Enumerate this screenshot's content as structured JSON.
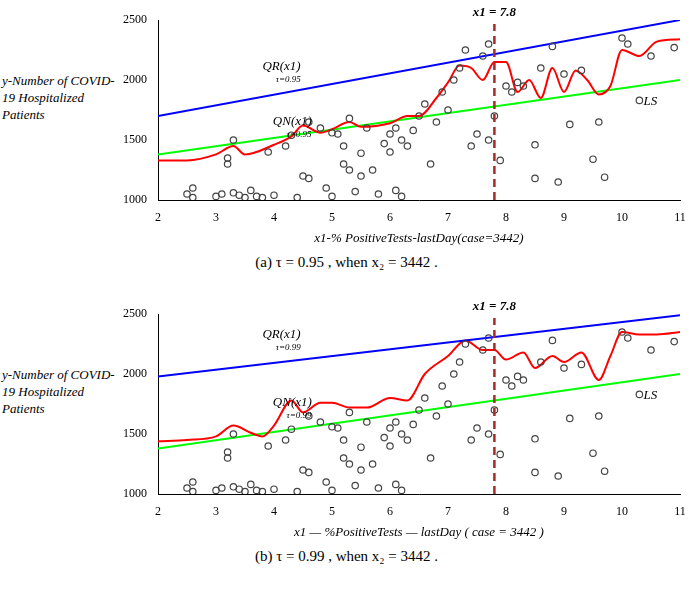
{
  "chart_data": [
    {
      "type": "scatter",
      "caption": "(a)  τ = 0.95 , when  x₂ = 3442 .",
      "ylabel": "y-Number of COVID-19 Hospitalized Patients",
      "xlabel": "x1-% PositiveTests-lastDay(case=3442)",
      "xlim": [
        2,
        11
      ],
      "xticks": [
        2,
        3,
        4,
        5,
        6,
        7,
        8,
        9,
        10,
        11
      ],
      "ylim": [
        1000,
        2500
      ],
      "yticks": [
        1000,
        1500,
        2000,
        2500
      ],
      "grid": false,
      "vline": {
        "text": "x1 = 7.8",
        "x": 7.8,
        "color": "#a52a2a",
        "line_style": "dashed"
      },
      "series": [
        {
          "type": "scatter",
          "color": "#444444",
          "marker": "circle",
          "x": [
            2.5,
            2.6,
            2.6,
            3.0,
            3.1,
            3.2,
            3.2,
            3.3,
            3.3,
            3.4,
            3.5,
            3.6,
            3.7,
            3.8,
            3.9,
            4.0,
            4.2,
            4.3,
            4.4,
            4.5,
            4.6,
            4.6,
            4.8,
            4.9,
            5.0,
            5.0,
            5.1,
            5.2,
            5.2,
            5.3,
            5.3,
            5.4,
            5.5,
            5.5,
            5.6,
            5.7,
            5.8,
            5.9,
            6.0,
            6.0,
            6.1,
            6.1,
            6.2,
            6.2,
            6.3,
            6.4,
            6.5,
            6.6,
            6.7,
            6.8,
            6.9,
            7.0,
            7.1,
            7.2,
            7.3,
            7.4,
            7.5,
            7.6,
            7.7,
            7.7,
            7.8,
            7.9,
            8.0,
            8.1,
            8.2,
            8.3,
            8.5,
            8.5,
            8.6,
            8.8,
            8.9,
            9.0,
            9.1,
            9.3,
            9.5,
            9.6,
            9.7,
            10.0,
            10.1,
            10.3,
            10.5,
            10.9
          ],
          "values": [
            1050,
            1100,
            1020,
            1030,
            1050,
            1300,
            1350,
            1500,
            1060,
            1040,
            1020,
            1080,
            1030,
            1020,
            1400,
            1040,
            1450,
            1540,
            1020,
            1200,
            1180,
            1650,
            1600,
            1100,
            1030,
            1560,
            1550,
            1300,
            1450,
            1250,
            1680,
            1070,
            1390,
            1200,
            1600,
            1250,
            1050,
            1470,
            1550,
            1400,
            1600,
            1080,
            1500,
            1030,
            1450,
            1580,
            1700,
            1800,
            1300,
            1650,
            1900,
            1750,
            2000,
            2100,
            2250,
            1450,
            1550,
            2200,
            1500,
            2300,
            1700,
            1330,
            1950,
            1900,
            1980,
            1950,
            1460,
            1180,
            2100,
            2280,
            1150,
            2050,
            1630,
            2080,
            1340,
            1650,
            1190,
            2350,
            2300,
            1830,
            2200,
            2270
          ]
        },
        {
          "type": "line",
          "name": "QR(x1)",
          "subscript": "τ=0.95",
          "color": "#0000ff",
          "line_style": "solid",
          "x": [
            2,
            11
          ],
          "values": [
            1700,
            2500
          ]
        },
        {
          "type": "line",
          "name": "QN(x1)",
          "subscript": "τ=0.95",
          "color": "#ff0000",
          "line_style": "solid",
          "x": [
            2,
            2.5,
            3,
            3.3,
            3.5,
            4,
            4.3,
            4.5,
            4.8,
            5,
            5.3,
            5.5,
            6,
            6.3,
            6.5,
            6.8,
            7,
            7.2,
            7.4,
            7.6,
            7.8,
            8,
            8.2,
            8.4,
            8.6,
            8.8,
            9,
            9.2,
            9.4,
            9.6,
            9.8,
            10,
            10.3,
            10.6,
            11
          ],
          "values": [
            1330,
            1330,
            1380,
            1450,
            1380,
            1460,
            1530,
            1620,
            1560,
            1590,
            1650,
            1610,
            1640,
            1700,
            1700,
            1850,
            1980,
            2120,
            2100,
            2000,
            2150,
            2150,
            1900,
            2000,
            1850,
            2100,
            1900,
            2080,
            2000,
            1880,
            1950,
            2250,
            2200,
            2320,
            2340
          ]
        },
        {
          "type": "line",
          "name": "LS",
          "color": "#00ff00",
          "line_style": "solid",
          "x": [
            2,
            11
          ],
          "values": [
            1380,
            2000
          ]
        }
      ]
    },
    {
      "type": "scatter",
      "caption": "(b)  τ = 0.99 , when  x₂ = 3442 .",
      "ylabel": "y-Number of COVID-19 Hospitalized Patients",
      "xlabel": "x1 — %PositiveTests — lastDay ( case = 3442 )",
      "xlim": [
        2,
        11
      ],
      "xticks": [
        2,
        3,
        4,
        5,
        6,
        7,
        8,
        9,
        10,
        11
      ],
      "ylim": [
        1000,
        2500
      ],
      "yticks": [
        1000,
        1500,
        2000,
        2500
      ],
      "grid": false,
      "vline": {
        "text": "x1 = 7.8",
        "x": 7.8,
        "color": "#a52a2a",
        "line_style": "dashed"
      },
      "series": [
        {
          "type": "scatter",
          "color": "#444444",
          "marker": "circle",
          "x": [
            2.5,
            2.6,
            2.6,
            3.0,
            3.1,
            3.2,
            3.2,
            3.3,
            3.3,
            3.4,
            3.5,
            3.6,
            3.7,
            3.8,
            3.9,
            4.0,
            4.2,
            4.3,
            4.4,
            4.5,
            4.6,
            4.6,
            4.8,
            4.9,
            5.0,
            5.0,
            5.1,
            5.2,
            5.2,
            5.3,
            5.3,
            5.4,
            5.5,
            5.5,
            5.6,
            5.7,
            5.8,
            5.9,
            6.0,
            6.0,
            6.1,
            6.1,
            6.2,
            6.2,
            6.3,
            6.4,
            6.5,
            6.6,
            6.7,
            6.8,
            6.9,
            7.0,
            7.1,
            7.2,
            7.3,
            7.4,
            7.5,
            7.6,
            7.7,
            7.7,
            7.8,
            7.9,
            8.0,
            8.1,
            8.2,
            8.3,
            8.5,
            8.5,
            8.6,
            8.8,
            8.9,
            9.0,
            9.1,
            9.3,
            9.5,
            9.6,
            9.7,
            10.0,
            10.1,
            10.3,
            10.5,
            10.9
          ],
          "values": [
            1050,
            1100,
            1020,
            1030,
            1050,
            1300,
            1350,
            1500,
            1060,
            1040,
            1020,
            1080,
            1030,
            1020,
            1400,
            1040,
            1450,
            1540,
            1020,
            1200,
            1180,
            1650,
            1600,
            1100,
            1030,
            1560,
            1550,
            1300,
            1450,
            1250,
            1680,
            1070,
            1390,
            1200,
            1600,
            1250,
            1050,
            1470,
            1550,
            1400,
            1600,
            1080,
            1500,
            1030,
            1450,
            1580,
            1700,
            1800,
            1300,
            1650,
            1900,
            1750,
            2000,
            2100,
            2250,
            1450,
            1550,
            2200,
            1500,
            2300,
            1700,
            1330,
            1950,
            1900,
            1980,
            1950,
            1460,
            1180,
            2100,
            2280,
            1150,
            2050,
            1630,
            2080,
            1340,
            1650,
            1190,
            2350,
            2300,
            1830,
            2200,
            2270
          ]
        },
        {
          "type": "line",
          "name": "QR(x1)",
          "subscript": "τ=0.99",
          "color": "#0000ff",
          "line_style": "solid",
          "x": [
            2,
            11
          ],
          "values": [
            1980,
            2490
          ]
        },
        {
          "type": "line",
          "name": "QN(x1)",
          "subscript": "τ=0.99",
          "color": "#ff0000",
          "line_style": "solid",
          "x": [
            2,
            2.5,
            3,
            3.3,
            3.6,
            3.8,
            4,
            4.3,
            4.5,
            4.8,
            5,
            5.3,
            5.6,
            6,
            6.3,
            6.6,
            7,
            7.3,
            7.6,
            7.8,
            8,
            8.3,
            8.5,
            8.8,
            9,
            9.3,
            9.6,
            9.8,
            10,
            10.3,
            10.6,
            11
          ],
          "values": [
            1440,
            1450,
            1480,
            1570,
            1510,
            1480,
            1570,
            1780,
            1680,
            1760,
            1760,
            1720,
            1720,
            1800,
            1780,
            2000,
            2150,
            2280,
            2200,
            2200,
            2120,
            2180,
            2050,
            2150,
            2100,
            2180,
            1950,
            2150,
            2350,
            2330,
            2330,
            2350
          ]
        },
        {
          "type": "line",
          "name": "LS",
          "color": "#00ff00",
          "line_style": "solid",
          "x": [
            2,
            11
          ],
          "values": [
            1380,
            2000
          ]
        }
      ]
    }
  ]
}
